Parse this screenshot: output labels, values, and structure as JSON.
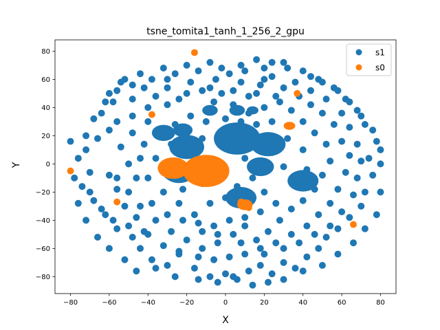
{
  "chart_data": {
    "type": "scatter",
    "title": "tsne_tomita1_tanh_1_256_2_gpu",
    "xlabel": "X",
    "ylabel": "Y",
    "xlim": [
      -88,
      88
    ],
    "ylim": [
      -92,
      88
    ],
    "xticks": [
      -80,
      -60,
      -40,
      -20,
      0,
      20,
      40,
      60,
      80
    ],
    "yticks": [
      -80,
      -60,
      -40,
      -20,
      0,
      20,
      40,
      60,
      80
    ],
    "grid": false,
    "legend_position": "top-right",
    "series": [
      {
        "name": "s1",
        "color": "#1f77b4",
        "points": [
          [
            -2,
            50
          ],
          [
            -5,
            60
          ],
          [
            2,
            64
          ],
          [
            8,
            58
          ],
          [
            12,
            48
          ],
          [
            18,
            56
          ],
          [
            24,
            62
          ],
          [
            30,
            54
          ],
          [
            28,
            44
          ],
          [
            20,
            40
          ],
          [
            12,
            36
          ],
          [
            4,
            42
          ],
          [
            -6,
            44
          ],
          [
            -12,
            52
          ],
          [
            -18,
            58
          ],
          [
            -24,
            46
          ],
          [
            -30,
            54
          ],
          [
            -36,
            48
          ],
          [
            -42,
            54
          ],
          [
            -48,
            46
          ],
          [
            -54,
            58
          ],
          [
            -58,
            44
          ],
          [
            -64,
            36
          ],
          [
            -60,
            24
          ],
          [
            -66,
            18
          ],
          [
            -72,
            10
          ],
          [
            -70,
            -6
          ],
          [
            -74,
            -16
          ],
          [
            -68,
            -26
          ],
          [
            -62,
            -36
          ],
          [
            -56,
            -46
          ],
          [
            -48,
            -52
          ],
          [
            -44,
            -60
          ],
          [
            -38,
            -68
          ],
          [
            -30,
            -72
          ],
          [
            -24,
            -64
          ],
          [
            -16,
            -74
          ],
          [
            -8,
            -80
          ],
          [
            0,
            -78
          ],
          [
            6,
            -82
          ],
          [
            12,
            -76
          ],
          [
            18,
            -72
          ],
          [
            24,
            -78
          ],
          [
            30,
            -70
          ],
          [
            36,
            -74
          ],
          [
            42,
            -66
          ],
          [
            48,
            -60
          ],
          [
            52,
            -52
          ],
          [
            58,
            -46
          ],
          [
            64,
            -38
          ],
          [
            70,
            -30
          ],
          [
            72,
            -20
          ],
          [
            76,
            -8
          ],
          [
            74,
            4
          ],
          [
            78,
            16
          ],
          [
            72,
            28
          ],
          [
            68,
            38
          ],
          [
            62,
            46
          ],
          [
            56,
            54
          ],
          [
            48,
            60
          ],
          [
            40,
            66
          ],
          [
            32,
            68
          ],
          [
            24,
            72
          ],
          [
            16,
            74
          ],
          [
            8,
            70
          ],
          [
            -8,
            72
          ],
          [
            -20,
            70
          ],
          [
            -32,
            68
          ],
          [
            -44,
            64
          ],
          [
            -52,
            60
          ],
          [
            -40,
            30
          ],
          [
            -48,
            22
          ],
          [
            -54,
            12
          ],
          [
            -50,
            0
          ],
          [
            -56,
            -10
          ],
          [
            -50,
            -20
          ],
          [
            -44,
            -30
          ],
          [
            -36,
            -40
          ],
          [
            -28,
            -48
          ],
          [
            -20,
            -54
          ],
          [
            -12,
            -60
          ],
          [
            -4,
            -56
          ],
          [
            4,
            -50
          ],
          [
            10,
            -44
          ],
          [
            16,
            -54
          ],
          [
            22,
            -48
          ],
          [
            28,
            -40
          ],
          [
            34,
            -32
          ],
          [
            40,
            -26
          ],
          [
            46,
            -18
          ],
          [
            50,
            -8
          ],
          [
            54,
            2
          ],
          [
            52,
            14
          ],
          [
            46,
            22
          ],
          [
            40,
            30
          ],
          [
            34,
            38
          ],
          [
            24,
            30
          ],
          [
            16,
            28
          ],
          [
            8,
            30
          ],
          [
            0,
            32
          ],
          [
            -10,
            30
          ],
          [
            -18,
            34
          ],
          [
            -26,
            28
          ],
          [
            -34,
            22
          ],
          [
            -20,
            8
          ],
          [
            -28,
            14
          ],
          [
            -36,
            4
          ],
          [
            -40,
            -10
          ],
          [
            -32,
            -20
          ],
          [
            -24,
            -28
          ],
          [
            -16,
            -36
          ],
          [
            -8,
            -28
          ],
          [
            0,
            -24
          ],
          [
            6,
            -16
          ],
          [
            14,
            -10
          ],
          [
            20,
            -20
          ],
          [
            26,
            -28
          ],
          [
            18,
            -34
          ],
          [
            10,
            -38
          ],
          [
            2,
            -40
          ],
          [
            -6,
            -44
          ],
          [
            -14,
            -42
          ],
          [
            -22,
            -18
          ],
          [
            -30,
            -8
          ],
          [
            -12,
            -14
          ],
          [
            -4,
            -8
          ],
          [
            10,
            4
          ],
          [
            16,
            14
          ],
          [
            24,
            8
          ],
          [
            30,
            -2
          ],
          [
            36,
            -10
          ],
          [
            42,
            -4
          ],
          [
            40,
            10
          ],
          [
            32,
            18
          ],
          [
            6,
            18
          ],
          [
            -2,
            20
          ],
          [
            -12,
            18
          ],
          [
            -80,
            16
          ],
          [
            -78,
            -10
          ],
          [
            -76,
            -28
          ],
          [
            -72,
            -40
          ],
          [
            -66,
            -52
          ],
          [
            -60,
            -60
          ],
          [
            -52,
            -68
          ],
          [
            -46,
            -76
          ],
          [
            -36,
            -74
          ],
          [
            -26,
            -80
          ],
          [
            -14,
            -82
          ],
          [
            -4,
            -84
          ],
          [
            4,
            -80
          ],
          [
            14,
            -86
          ],
          [
            22,
            -84
          ],
          [
            30,
            -82
          ],
          [
            40,
            -76
          ],
          [
            50,
            -72
          ],
          [
            58,
            -64
          ],
          [
            66,
            -56
          ],
          [
            72,
            -46
          ],
          [
            78,
            -36
          ],
          [
            80,
            -20
          ],
          [
            80,
            0
          ],
          [
            80,
            10
          ],
          [
            76,
            24
          ],
          [
            70,
            34
          ],
          [
            64,
            44
          ],
          [
            58,
            52
          ],
          [
            50,
            58
          ],
          [
            44,
            62
          ],
          [
            36,
            58
          ],
          [
            30,
            72
          ],
          [
            20,
            68
          ],
          [
            10,
            66
          ],
          [
            -2,
            68
          ],
          [
            -14,
            66
          ],
          [
            -26,
            64
          ],
          [
            -38,
            60
          ],
          [
            -48,
            56
          ],
          [
            -56,
            52
          ],
          [
            -62,
            44
          ],
          [
            -68,
            32
          ],
          [
            -72,
            20
          ],
          [
            -76,
            4
          ],
          [
            -70,
            -20
          ],
          [
            -64,
            -32
          ],
          [
            -58,
            -40
          ],
          [
            -50,
            -44
          ],
          [
            -42,
            -48
          ],
          [
            -60,
            -8
          ],
          [
            -56,
            -18
          ],
          [
            -46,
            -10
          ],
          [
            -44,
            4
          ],
          [
            -42,
            14
          ],
          [
            -38,
            -28
          ],
          [
            -30,
            -36
          ],
          [
            -22,
            -40
          ],
          [
            -12,
            -48
          ],
          [
            -4,
            -50
          ],
          [
            8,
            -56
          ],
          [
            18,
            -60
          ],
          [
            26,
            -56
          ],
          [
            34,
            -50
          ],
          [
            42,
            -44
          ],
          [
            48,
            -36
          ],
          [
            54,
            -28
          ],
          [
            58,
            -18
          ],
          [
            62,
            -6
          ],
          [
            64,
            6
          ],
          [
            60,
            16
          ],
          [
            56,
            28
          ],
          [
            50,
            36
          ],
          [
            44,
            42
          ],
          [
            38,
            48
          ],
          [
            26,
            48
          ],
          [
            16,
            50
          ],
          [
            4,
            52
          ],
          [
            -8,
            54
          ],
          [
            -20,
            50
          ],
          [
            -30,
            42
          ],
          [
            -40,
            40
          ],
          [
            -48,
            34
          ],
          [
            -56,
            30
          ],
          [
            -52,
            -30
          ],
          [
            -46,
            -38
          ],
          [
            -40,
            -50
          ],
          [
            -32,
            -58
          ],
          [
            -24,
            -62
          ],
          [
            -14,
            -66
          ],
          [
            -6,
            -68
          ],
          [
            2,
            -66
          ],
          [
            10,
            -64
          ],
          [
            20,
            -64
          ],
          [
            30,
            -60
          ],
          [
            38,
            -56
          ],
          [
            46,
            -50
          ],
          [
            54,
            -44
          ],
          [
            60,
            -34
          ],
          [
            66,
            -22
          ],
          [
            68,
            -10
          ],
          [
            70,
            2
          ],
          [
            68,
            14
          ],
          [
            64,
            26
          ],
          [
            60,
            36
          ],
          [
            52,
            46
          ],
          [
            44,
            52
          ],
          [
            20,
            60
          ],
          [
            -30,
            60
          ],
          [
            -60,
            50
          ]
        ],
        "clusters": [
          [
            -32,
            22,
            "radius",
            6
          ],
          [
            -22,
            24,
            "radius",
            5
          ],
          [
            -8,
            38,
            "radius",
            4
          ],
          [
            6,
            38,
            "radius",
            4
          ],
          [
            14,
            38,
            "radius",
            3
          ],
          [
            -20,
            12,
            "radius",
            9
          ],
          [
            22,
            14,
            "radius",
            9
          ],
          [
            8,
            -24,
            "radius",
            8
          ],
          [
            6,
            18,
            "radius",
            12
          ],
          [
            -24,
            -6,
            "radius",
            8
          ],
          [
            18,
            -2,
            "radius",
            7
          ],
          [
            40,
            -12,
            "radius",
            8
          ]
        ]
      },
      {
        "name": "s0",
        "color": "#ff7f0e",
        "points": [
          [
            -16,
            79
          ],
          [
            37,
            50
          ],
          [
            -38,
            35
          ],
          [
            33,
            27
          ],
          [
            -80,
            -5
          ],
          [
            -56,
            -27
          ],
          [
            66,
            -43
          ],
          [
            10,
            -29
          ],
          [
            12,
            -31
          ],
          [
            8,
            -27
          ]
        ],
        "clusters": [
          [
            -10,
            -5,
            "radius",
            12
          ],
          [
            -27,
            -3,
            "radius",
            8
          ],
          [
            10,
            -29,
            "radius",
            4
          ],
          [
            33,
            27,
            "radius",
            3
          ]
        ]
      }
    ]
  }
}
